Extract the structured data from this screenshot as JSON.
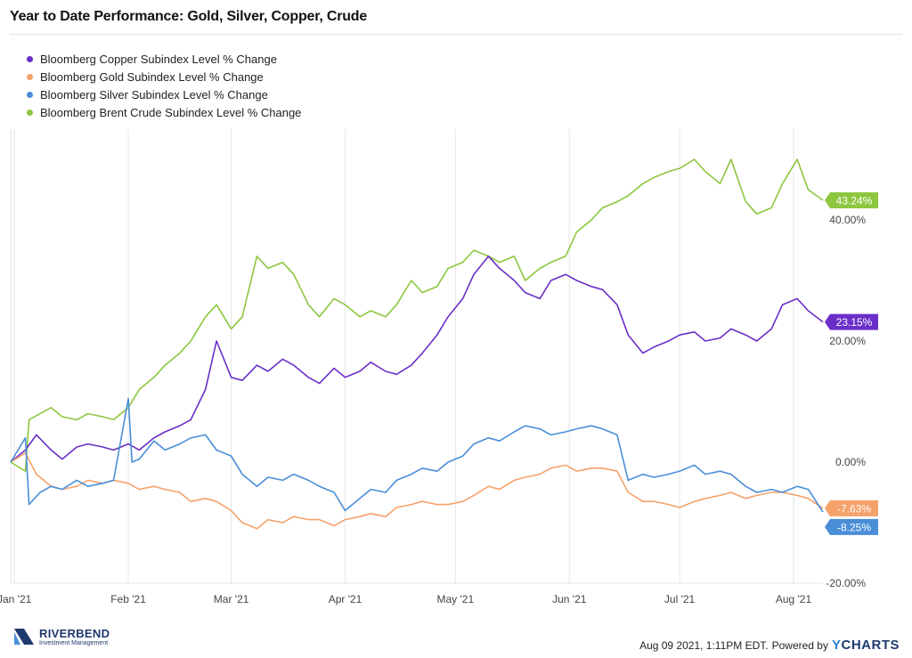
{
  "title": "Year to Date Performance: Gold, Silver, Copper, Crude",
  "footer": {
    "timestamp": "Aug 09 2021, 1:11PM EDT.",
    "powered_by": "Powered by",
    "provider_y": "Y",
    "provider_rest": "CHARTS"
  },
  "brand": {
    "name": "RIVERBEND",
    "subtitle": "Investment Management"
  },
  "chart_data": {
    "type": "line",
    "x_type": "date",
    "x_range": [
      "2020-12-31",
      "2021-08-09"
    ],
    "ylim": [
      -20,
      55
    ],
    "y_ticks": [
      -20,
      0,
      20,
      40
    ],
    "y_tick_labels": [
      "-20.00%",
      "0.00%",
      "20.00%",
      "40.00%"
    ],
    "x_ticks": [
      "2021-01-01",
      "2021-02-01",
      "2021-03-01",
      "2021-04-01",
      "2021-05-01",
      "2021-06-01",
      "2021-07-01",
      "2021-08-01"
    ],
    "x_tick_labels": [
      "Jan '21",
      "Feb '21",
      "Mar '21",
      "Apr '21",
      "May '21",
      "Jun '21",
      "Jul '21",
      "Aug '21"
    ],
    "grid": "vertical",
    "legend_position": "top-left",
    "series": [
      {
        "name": "Bloomberg Copper Subindex Level % Change",
        "color": "#6a2fc8",
        "end_label": "23.15%",
        "points": [
          [
            "2020-12-31",
            0
          ],
          [
            "2021-01-04",
            2
          ],
          [
            "2021-01-07",
            4.5
          ],
          [
            "2021-01-11",
            2
          ],
          [
            "2021-01-14",
            0.5
          ],
          [
            "2021-01-18",
            2.5
          ],
          [
            "2021-01-21",
            3
          ],
          [
            "2021-01-25",
            2.5
          ],
          [
            "2021-01-28",
            2
          ],
          [
            "2021-02-01",
            3
          ],
          [
            "2021-02-04",
            2
          ],
          [
            "2021-02-08",
            4
          ],
          [
            "2021-02-11",
            5
          ],
          [
            "2021-02-15",
            6
          ],
          [
            "2021-02-18",
            7
          ],
          [
            "2021-02-22",
            12
          ],
          [
            "2021-02-25",
            20
          ],
          [
            "2021-03-01",
            14
          ],
          [
            "2021-03-04",
            13.5
          ],
          [
            "2021-03-08",
            16
          ],
          [
            "2021-03-11",
            15
          ],
          [
            "2021-03-15",
            17
          ],
          [
            "2021-03-18",
            16
          ],
          [
            "2021-03-22",
            14
          ],
          [
            "2021-03-25",
            13
          ],
          [
            "2021-03-29",
            15.5
          ],
          [
            "2021-04-01",
            14
          ],
          [
            "2021-04-05",
            15
          ],
          [
            "2021-04-08",
            16.5
          ],
          [
            "2021-04-12",
            15
          ],
          [
            "2021-04-15",
            14.5
          ],
          [
            "2021-04-19",
            16
          ],
          [
            "2021-04-22",
            18
          ],
          [
            "2021-04-26",
            21
          ],
          [
            "2021-04-29",
            24
          ],
          [
            "2021-05-03",
            27
          ],
          [
            "2021-05-06",
            31
          ],
          [
            "2021-05-10",
            34
          ],
          [
            "2021-05-13",
            32
          ],
          [
            "2021-05-17",
            30
          ],
          [
            "2021-05-20",
            28
          ],
          [
            "2021-05-24",
            27
          ],
          [
            "2021-05-27",
            30
          ],
          [
            "2021-05-31",
            31
          ],
          [
            "2021-06-03",
            30
          ],
          [
            "2021-06-07",
            29
          ],
          [
            "2021-06-10",
            28.5
          ],
          [
            "2021-06-14",
            26
          ],
          [
            "2021-06-17",
            21
          ],
          [
            "2021-06-21",
            18
          ],
          [
            "2021-06-24",
            19
          ],
          [
            "2021-06-28",
            20
          ],
          [
            "2021-07-01",
            21
          ],
          [
            "2021-07-05",
            21.5
          ],
          [
            "2021-07-08",
            20
          ],
          [
            "2021-07-12",
            20.5
          ],
          [
            "2021-07-15",
            22
          ],
          [
            "2021-07-19",
            21
          ],
          [
            "2021-07-22",
            20
          ],
          [
            "2021-07-26",
            22
          ],
          [
            "2021-07-29",
            26
          ],
          [
            "2021-08-02",
            27
          ],
          [
            "2021-08-05",
            25
          ],
          [
            "2021-08-09",
            23.15
          ]
        ]
      },
      {
        "name": "Bloomberg Gold Subindex Level % Change",
        "color": "#f5a26a",
        "end_label": "-7.63%",
        "points": [
          [
            "2020-12-31",
            0
          ],
          [
            "2021-01-04",
            1.5
          ],
          [
            "2021-01-07",
            -2
          ],
          [
            "2021-01-11",
            -4
          ],
          [
            "2021-01-14",
            -4.5
          ],
          [
            "2021-01-18",
            -4
          ],
          [
            "2021-01-21",
            -3
          ],
          [
            "2021-01-25",
            -3.5
          ],
          [
            "2021-01-28",
            -3
          ],
          [
            "2021-02-01",
            -3.5
          ],
          [
            "2021-02-04",
            -4.5
          ],
          [
            "2021-02-08",
            -4
          ],
          [
            "2021-02-11",
            -4.5
          ],
          [
            "2021-02-15",
            -5
          ],
          [
            "2021-02-18",
            -6.5
          ],
          [
            "2021-02-22",
            -6
          ],
          [
            "2021-02-25",
            -6.5
          ],
          [
            "2021-03-01",
            -8
          ],
          [
            "2021-03-04",
            -10
          ],
          [
            "2021-03-08",
            -11
          ],
          [
            "2021-03-11",
            -9.5
          ],
          [
            "2021-03-15",
            -10
          ],
          [
            "2021-03-18",
            -9
          ],
          [
            "2021-03-22",
            -9.5
          ],
          [
            "2021-03-25",
            -9.5
          ],
          [
            "2021-03-29",
            -10.5
          ],
          [
            "2021-04-01",
            -9.5
          ],
          [
            "2021-04-05",
            -9
          ],
          [
            "2021-04-08",
            -8.5
          ],
          [
            "2021-04-12",
            -9
          ],
          [
            "2021-04-15",
            -7.5
          ],
          [
            "2021-04-19",
            -7
          ],
          [
            "2021-04-22",
            -6.5
          ],
          [
            "2021-04-26",
            -7
          ],
          [
            "2021-04-29",
            -7
          ],
          [
            "2021-05-03",
            -6.5
          ],
          [
            "2021-05-06",
            -5.5
          ],
          [
            "2021-05-10",
            -4
          ],
          [
            "2021-05-13",
            -4.5
          ],
          [
            "2021-05-17",
            -3
          ],
          [
            "2021-05-20",
            -2.5
          ],
          [
            "2021-05-24",
            -2
          ],
          [
            "2021-05-27",
            -1
          ],
          [
            "2021-05-31",
            -0.5
          ],
          [
            "2021-06-03",
            -1.5
          ],
          [
            "2021-06-07",
            -1
          ],
          [
            "2021-06-10",
            -1
          ],
          [
            "2021-06-14",
            -1.5
          ],
          [
            "2021-06-17",
            -5
          ],
          [
            "2021-06-21",
            -6.5
          ],
          [
            "2021-06-24",
            -6.5
          ],
          [
            "2021-06-28",
            -7
          ],
          [
            "2021-07-01",
            -7.5
          ],
          [
            "2021-07-05",
            -6.5
          ],
          [
            "2021-07-08",
            -6
          ],
          [
            "2021-07-12",
            -5.5
          ],
          [
            "2021-07-15",
            -5
          ],
          [
            "2021-07-19",
            -6
          ],
          [
            "2021-07-22",
            -5.5
          ],
          [
            "2021-07-26",
            -5
          ],
          [
            "2021-07-29",
            -5
          ],
          [
            "2021-08-02",
            -5.5
          ],
          [
            "2021-08-05",
            -6
          ],
          [
            "2021-08-09",
            -7.63
          ]
        ]
      },
      {
        "name": "Bloomberg Silver Subindex Level % Change",
        "color": "#4a8ed8",
        "end_label": "-8.25%",
        "points": [
          [
            "2020-12-31",
            0
          ],
          [
            "2021-01-04",
            4
          ],
          [
            "2021-01-05",
            -7
          ],
          [
            "2021-01-08",
            -5
          ],
          [
            "2021-01-11",
            -4
          ],
          [
            "2021-01-14",
            -4.5
          ],
          [
            "2021-01-18",
            -3
          ],
          [
            "2021-01-21",
            -4
          ],
          [
            "2021-01-25",
            -3.5
          ],
          [
            "2021-01-28",
            -3
          ],
          [
            "2021-02-01",
            10.5
          ],
          [
            "2021-02-02",
            0
          ],
          [
            "2021-02-04",
            0.5
          ],
          [
            "2021-02-08",
            3.5
          ],
          [
            "2021-02-11",
            2
          ],
          [
            "2021-02-15",
            3
          ],
          [
            "2021-02-18",
            4
          ],
          [
            "2021-02-22",
            4.5
          ],
          [
            "2021-02-25",
            2
          ],
          [
            "2021-03-01",
            1
          ],
          [
            "2021-03-04",
            -2
          ],
          [
            "2021-03-08",
            -4
          ],
          [
            "2021-03-11",
            -2.5
          ],
          [
            "2021-03-15",
            -3
          ],
          [
            "2021-03-18",
            -2
          ],
          [
            "2021-03-22",
            -3
          ],
          [
            "2021-03-25",
            -4
          ],
          [
            "2021-03-29",
            -5
          ],
          [
            "2021-04-01",
            -8
          ],
          [
            "2021-04-05",
            -6
          ],
          [
            "2021-04-08",
            -4.5
          ],
          [
            "2021-04-12",
            -5
          ],
          [
            "2021-04-15",
            -3
          ],
          [
            "2021-04-19",
            -2
          ],
          [
            "2021-04-22",
            -1
          ],
          [
            "2021-04-26",
            -1.5
          ],
          [
            "2021-04-29",
            0
          ],
          [
            "2021-05-03",
            1
          ],
          [
            "2021-05-06",
            3
          ],
          [
            "2021-05-10",
            4
          ],
          [
            "2021-05-13",
            3.5
          ],
          [
            "2021-05-17",
            5
          ],
          [
            "2021-05-20",
            6
          ],
          [
            "2021-05-24",
            5.5
          ],
          [
            "2021-05-27",
            4.5
          ],
          [
            "2021-05-31",
            5
          ],
          [
            "2021-06-03",
            5.5
          ],
          [
            "2021-06-07",
            6
          ],
          [
            "2021-06-10",
            5.5
          ],
          [
            "2021-06-14",
            4.5
          ],
          [
            "2021-06-17",
            -3
          ],
          [
            "2021-06-21",
            -2
          ],
          [
            "2021-06-24",
            -2.5
          ],
          [
            "2021-06-28",
            -2
          ],
          [
            "2021-07-01",
            -1.5
          ],
          [
            "2021-07-05",
            -0.5
          ],
          [
            "2021-07-08",
            -2
          ],
          [
            "2021-07-12",
            -1.5
          ],
          [
            "2021-07-15",
            -2
          ],
          [
            "2021-07-19",
            -4
          ],
          [
            "2021-07-22",
            -5
          ],
          [
            "2021-07-26",
            -4.5
          ],
          [
            "2021-07-29",
            -5
          ],
          [
            "2021-08-02",
            -4
          ],
          [
            "2021-08-05",
            -4.5
          ],
          [
            "2021-08-09",
            -8.25
          ]
        ]
      },
      {
        "name": "Bloomberg Brent Crude Subindex Level % Change",
        "color": "#8dc63f",
        "end_label": "43.24%",
        "points": [
          [
            "2020-12-31",
            0
          ],
          [
            "2021-01-04",
            -1.5
          ],
          [
            "2021-01-05",
            7
          ],
          [
            "2021-01-08",
            8
          ],
          [
            "2021-01-11",
            9
          ],
          [
            "2021-01-14",
            7.5
          ],
          [
            "2021-01-18",
            7
          ],
          [
            "2021-01-21",
            8
          ],
          [
            "2021-01-25",
            7.5
          ],
          [
            "2021-01-28",
            7
          ],
          [
            "2021-02-01",
            9
          ],
          [
            "2021-02-04",
            12
          ],
          [
            "2021-02-08",
            14
          ],
          [
            "2021-02-11",
            16
          ],
          [
            "2021-02-15",
            18
          ],
          [
            "2021-02-18",
            20
          ],
          [
            "2021-02-22",
            24
          ],
          [
            "2021-02-25",
            26
          ],
          [
            "2021-03-01",
            22
          ],
          [
            "2021-03-04",
            24
          ],
          [
            "2021-03-08",
            34
          ],
          [
            "2021-03-11",
            32
          ],
          [
            "2021-03-15",
            33
          ],
          [
            "2021-03-18",
            31
          ],
          [
            "2021-03-22",
            26
          ],
          [
            "2021-03-25",
            24
          ],
          [
            "2021-03-29",
            27
          ],
          [
            "2021-04-01",
            26
          ],
          [
            "2021-04-05",
            24
          ],
          [
            "2021-04-08",
            25
          ],
          [
            "2021-04-12",
            24
          ],
          [
            "2021-04-15",
            26
          ],
          [
            "2021-04-19",
            30
          ],
          [
            "2021-04-22",
            28
          ],
          [
            "2021-04-26",
            29
          ],
          [
            "2021-04-29",
            32
          ],
          [
            "2021-05-03",
            33
          ],
          [
            "2021-05-06",
            35
          ],
          [
            "2021-05-10",
            34
          ],
          [
            "2021-05-13",
            33
          ],
          [
            "2021-05-17",
            34
          ],
          [
            "2021-05-20",
            30
          ],
          [
            "2021-05-24",
            32
          ],
          [
            "2021-05-27",
            33
          ],
          [
            "2021-05-31",
            34
          ],
          [
            "2021-06-03",
            38
          ],
          [
            "2021-06-07",
            40
          ],
          [
            "2021-06-10",
            42
          ],
          [
            "2021-06-14",
            43
          ],
          [
            "2021-06-17",
            44
          ],
          [
            "2021-06-21",
            46
          ],
          [
            "2021-06-24",
            47
          ],
          [
            "2021-06-28",
            48
          ],
          [
            "2021-07-01",
            48.5
          ],
          [
            "2021-07-05",
            50
          ],
          [
            "2021-07-08",
            48
          ],
          [
            "2021-07-12",
            46
          ],
          [
            "2021-07-15",
            50
          ],
          [
            "2021-07-19",
            43
          ],
          [
            "2021-07-22",
            41
          ],
          [
            "2021-07-26",
            42
          ],
          [
            "2021-07-29",
            46
          ],
          [
            "2021-08-02",
            50
          ],
          [
            "2021-08-05",
            45
          ],
          [
            "2021-08-09",
            43.24
          ]
        ]
      }
    ]
  }
}
